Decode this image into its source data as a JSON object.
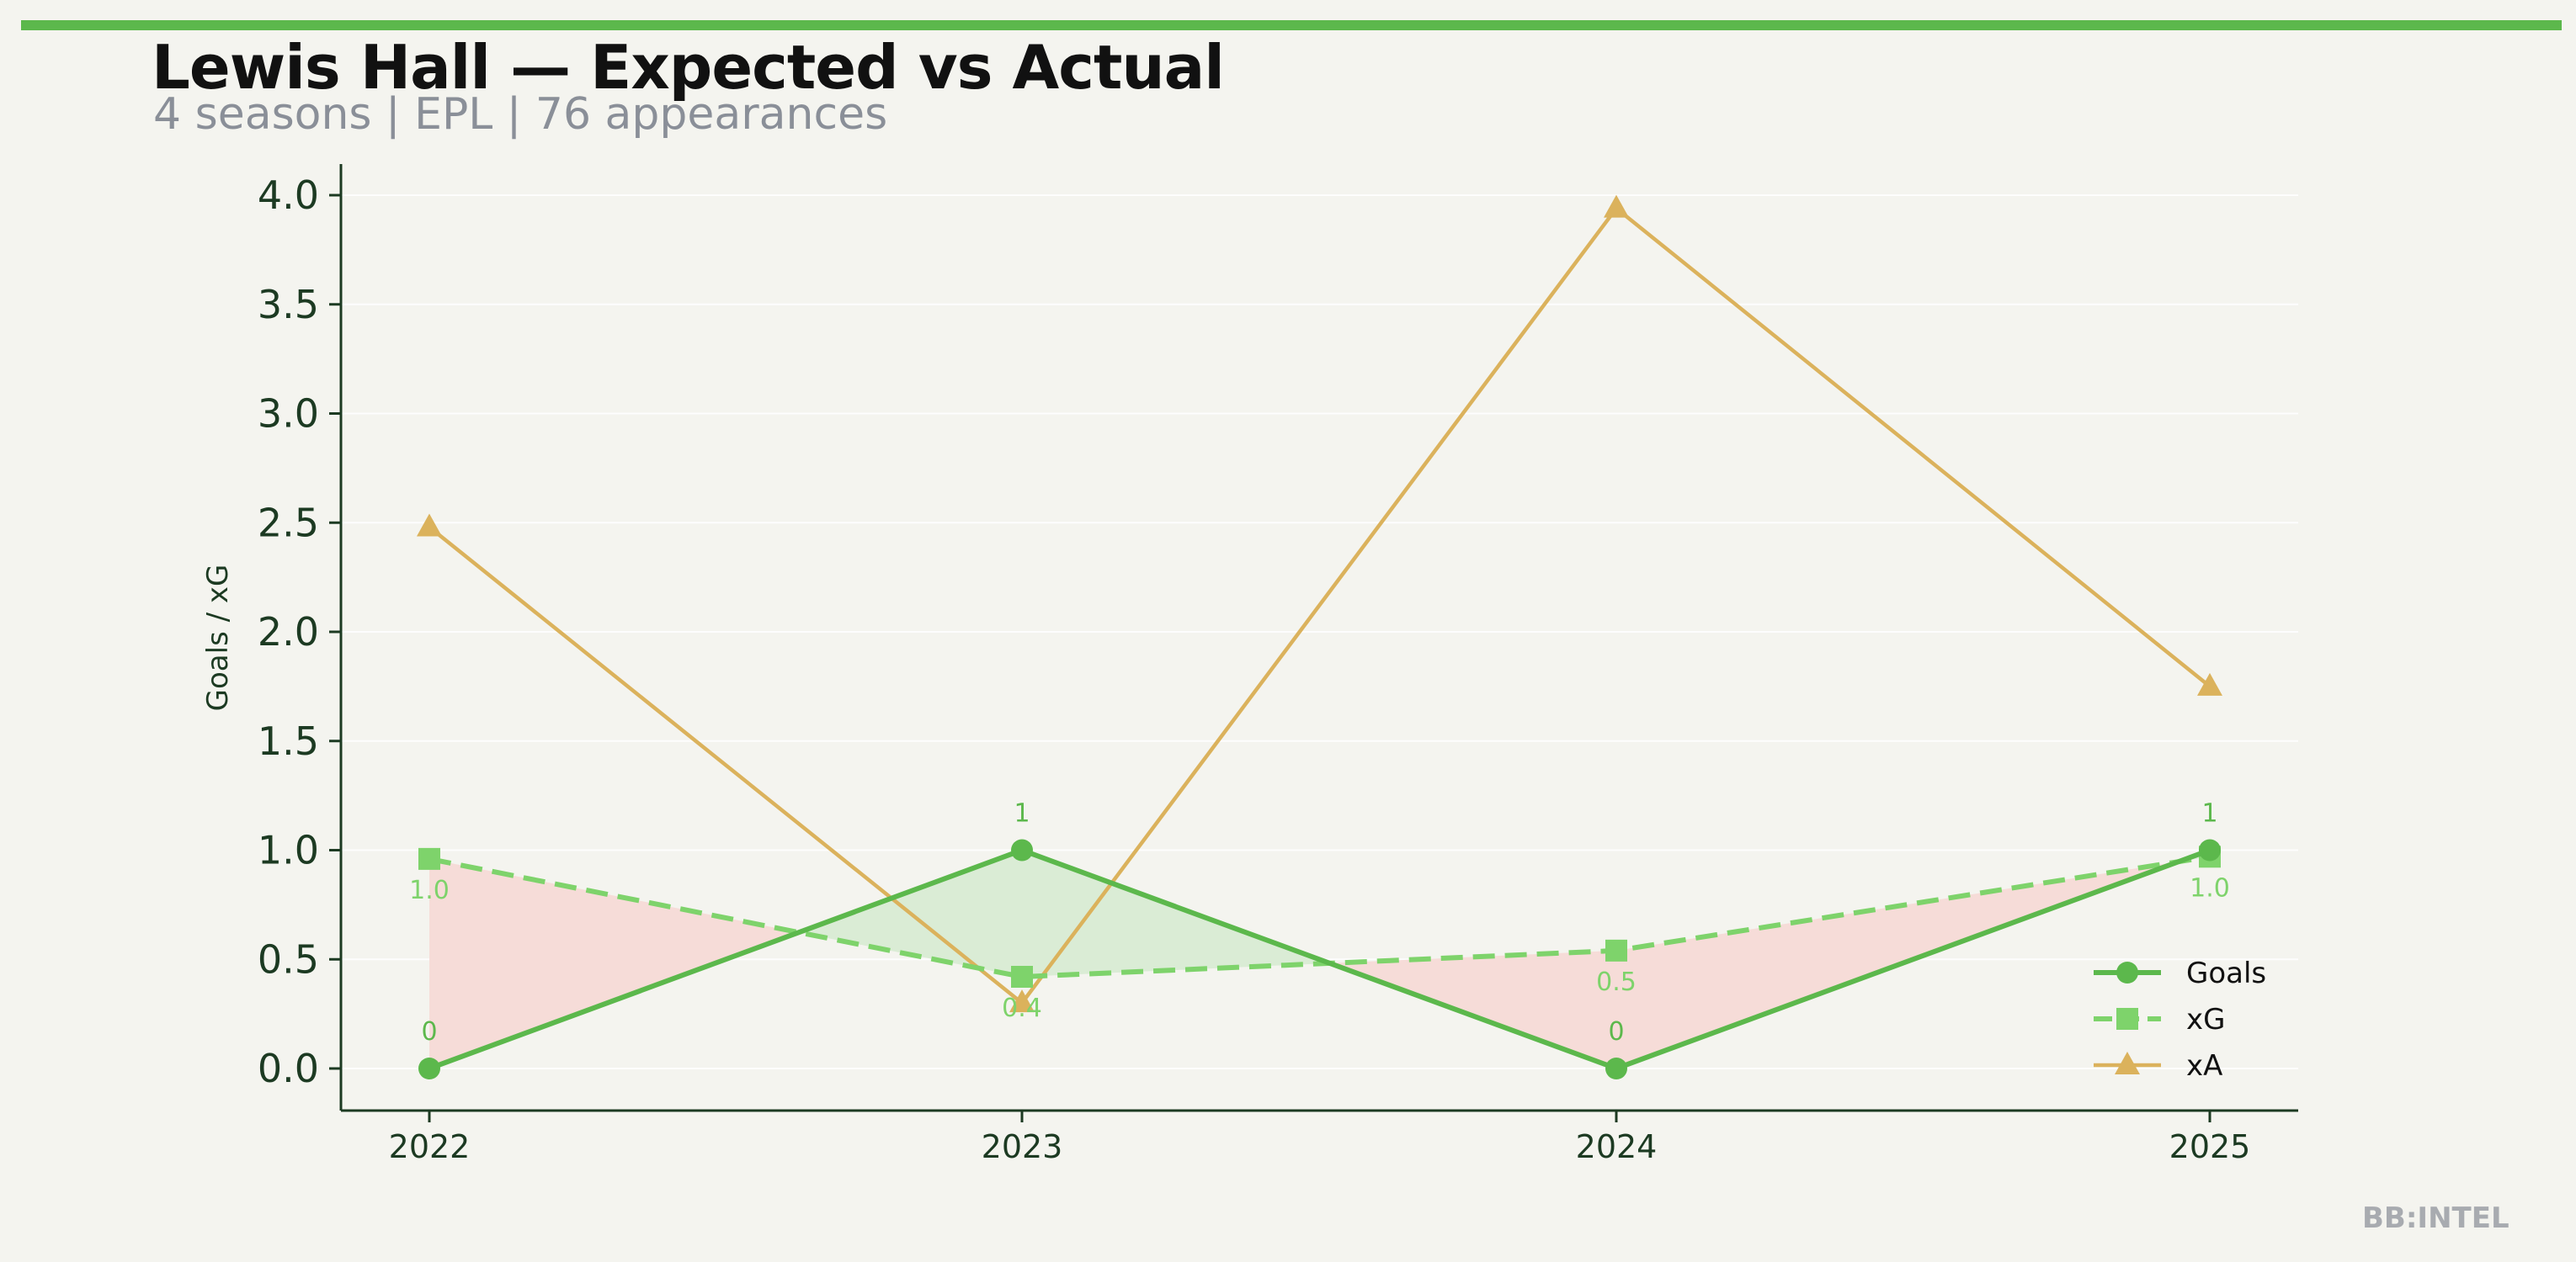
{
  "header": {
    "title": "Lewis Hall — Expected vs Actual",
    "subtitle": "4 seasons | EPL | 76 appearances"
  },
  "brand": "BB:INTEL",
  "colors": {
    "background": "#f4f4ef",
    "accent": "#5cb84c",
    "goals": "#5cb84c",
    "xg": "#7ed36b",
    "xa": "#dbb25c",
    "overperform_fill": "#d8ebd3",
    "underperform_fill": "#f5dad6",
    "axis": "#1c3a22"
  },
  "chart_data": {
    "type": "line",
    "title": "Lewis Hall — Expected vs Actual",
    "xlabel": "",
    "ylabel": "Goals / xG",
    "x": [
      "2022",
      "2023",
      "2024",
      "2025"
    ],
    "ylim": [
      -0.2,
      4.15
    ],
    "yticks": [
      "0.0",
      "0.5",
      "1.0",
      "1.5",
      "2.0",
      "2.5",
      "3.0",
      "3.5",
      "4.0"
    ],
    "grid": true,
    "legend_position": "lower-right",
    "series": [
      {
        "name": "Goals",
        "values": [
          0,
          1,
          0,
          1
        ],
        "labels": [
          "0",
          "1",
          "0",
          "1"
        ],
        "marker": "circle",
        "line": "solid"
      },
      {
        "name": "xG",
        "values": [
          0.96,
          0.42,
          0.54,
          0.97
        ],
        "labels": [
          "1.0",
          "0.4",
          "0.5",
          "1.0"
        ],
        "marker": "square",
        "line": "dashed"
      },
      {
        "name": "xA",
        "values": [
          2.48,
          0.3,
          3.94,
          1.75
        ],
        "marker": "triangle",
        "line": "solid"
      }
    ]
  }
}
